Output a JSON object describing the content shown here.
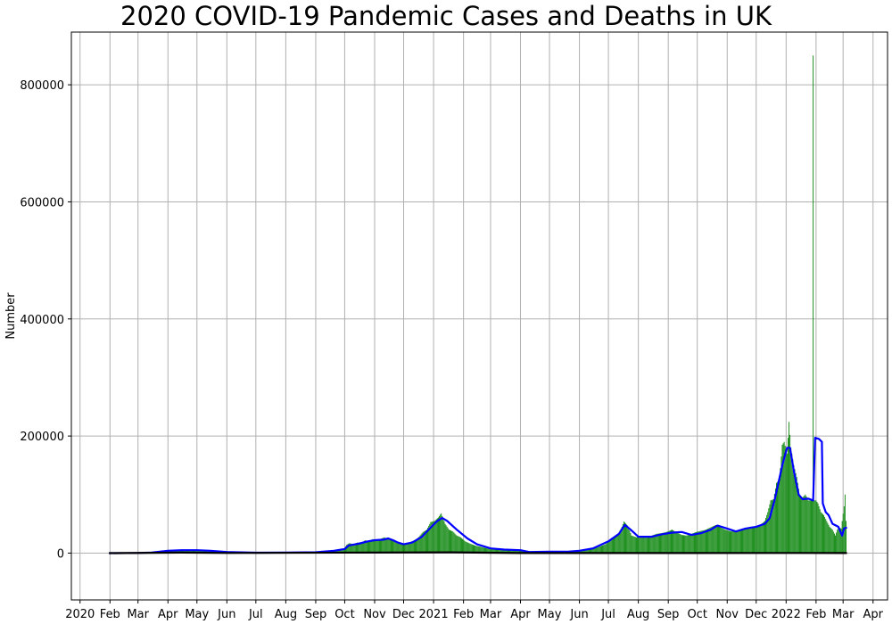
{
  "chart_data": {
    "type": "bar",
    "title": "2020 COVID-19 Pandemic Cases and Deaths in UK",
    "xlabel": "",
    "ylabel": "Number",
    "grid": true,
    "x_range": [
      "2019-12-23",
      "2022-04-16"
    ],
    "ylim": [
      -80000,
      890000
    ],
    "y_ticks": [
      0,
      200000,
      400000,
      600000,
      800000
    ],
    "y_tick_labels": [
      "0",
      "200000",
      "400000",
      "600000",
      "800000"
    ],
    "x_ticks": [
      {
        "date": "2020-01-01",
        "label": "2020"
      },
      {
        "date": "2020-02-01",
        "label": "Feb"
      },
      {
        "date": "2020-03-01",
        "label": "Mar"
      },
      {
        "date": "2020-04-01",
        "label": "Apr"
      },
      {
        "date": "2020-05-01",
        "label": "May"
      },
      {
        "date": "2020-06-01",
        "label": "Jun"
      },
      {
        "date": "2020-07-01",
        "label": "Jul"
      },
      {
        "date": "2020-08-01",
        "label": "Aug"
      },
      {
        "date": "2020-09-01",
        "label": "Sep"
      },
      {
        "date": "2020-10-01",
        "label": "Oct"
      },
      {
        "date": "2020-11-01",
        "label": "Nov"
      },
      {
        "date": "2020-12-01",
        "label": "Dec"
      },
      {
        "date": "2021-01-01",
        "label": "2021"
      },
      {
        "date": "2021-02-01",
        "label": "Feb"
      },
      {
        "date": "2021-03-01",
        "label": "Mar"
      },
      {
        "date": "2021-04-01",
        "label": "Apr"
      },
      {
        "date": "2021-05-01",
        "label": "May"
      },
      {
        "date": "2021-06-01",
        "label": "Jun"
      },
      {
        "date": "2021-07-01",
        "label": "Jul"
      },
      {
        "date": "2021-08-01",
        "label": "Aug"
      },
      {
        "date": "2021-09-01",
        "label": "Sep"
      },
      {
        "date": "2021-10-01",
        "label": "Oct"
      },
      {
        "date": "2021-11-01",
        "label": "Nov"
      },
      {
        "date": "2021-12-01",
        "label": "Dec"
      },
      {
        "date": "2022-01-01",
        "label": "2022"
      },
      {
        "date": "2022-02-01",
        "label": "Feb"
      },
      {
        "date": "2022-03-01",
        "label": "Mar"
      },
      {
        "date": "2022-04-01",
        "label": "Apr"
      }
    ],
    "colors": {
      "cases": "#008000",
      "rolling_average": "#0000ff",
      "deaths": "#000000",
      "grid": "#b0b0b0"
    },
    "series": [
      {
        "type": "bar",
        "points": [
          [
            "2020-01-31",
            0
          ],
          [
            "2020-02-15",
            20
          ],
          [
            "2020-03-01",
            50
          ],
          [
            "2020-03-15",
            600
          ],
          [
            "2020-03-25",
            2500
          ],
          [
            "2020-04-05",
            5000
          ],
          [
            "2020-04-15",
            5200
          ],
          [
            "2020-04-25",
            5000
          ],
          [
            "2020-05-05",
            4500
          ],
          [
            "2020-05-20",
            2800
          ],
          [
            "2020-06-05",
            1500
          ],
          [
            "2020-06-20",
            1100
          ],
          [
            "2020-07-05",
            700
          ],
          [
            "2020-07-20",
            650
          ],
          [
            "2020-08-05",
            850
          ],
          [
            "2020-08-20",
            1100
          ],
          [
            "2020-09-01",
            1600
          ],
          [
            "2020-09-10",
            2800
          ],
          [
            "2020-09-20",
            4500
          ],
          [
            "2020-09-30",
            7000
          ],
          [
            "2020-10-03",
            14000
          ],
          [
            "2020-10-06",
            17000
          ],
          [
            "2020-10-10",
            15000
          ],
          [
            "2020-10-14",
            18000
          ],
          [
            "2020-10-18",
            17000
          ],
          [
            "2020-10-22",
            22000
          ],
          [
            "2020-10-26",
            20000
          ],
          [
            "2020-10-30",
            24000
          ],
          [
            "2020-11-03",
            22000
          ],
          [
            "2020-11-07",
            24000
          ],
          [
            "2020-11-11",
            27000
          ],
          [
            "2020-11-15",
            24000
          ],
          [
            "2020-11-19",
            22000
          ],
          [
            "2020-11-23",
            20000
          ],
          [
            "2020-11-27",
            17000
          ],
          [
            "2020-12-01",
            14000
          ],
          [
            "2020-12-05",
            15500
          ],
          [
            "2020-12-09",
            20000
          ],
          [
            "2020-12-13",
            22000
          ],
          [
            "2020-12-17",
            28000
          ],
          [
            "2020-12-21",
            36000
          ],
          [
            "2020-12-25",
            40000
          ],
          [
            "2020-12-29",
            53000
          ],
          [
            "2021-01-02",
            55000
          ],
          [
            "2021-01-06",
            61000
          ],
          [
            "2021-01-09",
            68000
          ],
          [
            "2021-01-13",
            50000
          ],
          [
            "2021-01-17",
            40000
          ],
          [
            "2021-01-21",
            37000
          ],
          [
            "2021-01-25",
            30000
          ],
          [
            "2021-01-29",
            27000
          ],
          [
            "2021-02-03",
            20000
          ],
          [
            "2021-02-08",
            16000
          ],
          [
            "2021-02-13",
            13000
          ],
          [
            "2021-02-18",
            11000
          ],
          [
            "2021-02-23",
            9000
          ],
          [
            "2021-03-01",
            7000
          ],
          [
            "2021-03-08",
            6000
          ],
          [
            "2021-03-15",
            5500
          ],
          [
            "2021-03-25",
            5000
          ],
          [
            "2021-04-05",
            3000
          ],
          [
            "2021-04-15",
            2800
          ],
          [
            "2021-05-01",
            2200
          ],
          [
            "2021-05-15",
            2300
          ],
          [
            "2021-05-25",
            3000
          ],
          [
            "2021-06-01",
            4000
          ],
          [
            "2021-06-10",
            7000
          ],
          [
            "2021-06-20",
            10000
          ],
          [
            "2021-06-28",
            15000
          ],
          [
            "2021-07-05",
            24000
          ],
          [
            "2021-07-10",
            30000
          ],
          [
            "2021-07-15",
            45000
          ],
          [
            "2021-07-17",
            54000
          ],
          [
            "2021-07-21",
            47000
          ],
          [
            "2021-07-25",
            30000
          ],
          [
            "2021-07-30",
            27000
          ],
          [
            "2021-08-05",
            29000
          ],
          [
            "2021-08-10",
            26000
          ],
          [
            "2021-08-15",
            30000
          ],
          [
            "2021-08-20",
            33000
          ],
          [
            "2021-08-25",
            34000
          ],
          [
            "2021-08-30",
            36000
          ],
          [
            "2021-09-05",
            40000
          ],
          [
            "2021-09-10",
            35000
          ],
          [
            "2021-09-15",
            31000
          ],
          [
            "2021-09-20",
            30000
          ],
          [
            "2021-09-25",
            33000
          ],
          [
            "2021-09-30",
            36000
          ],
          [
            "2021-10-05",
            38000
          ],
          [
            "2021-10-10",
            40000
          ],
          [
            "2021-10-15",
            44000
          ],
          [
            "2021-10-20",
            48000
          ],
          [
            "2021-10-25",
            44000
          ],
          [
            "2021-10-30",
            40000
          ],
          [
            "2021-11-05",
            37000
          ],
          [
            "2021-11-10",
            38000
          ],
          [
            "2021-11-15",
            40000
          ],
          [
            "2021-11-20",
            42000
          ],
          [
            "2021-11-25",
            45000
          ],
          [
            "2021-12-01",
            46000
          ],
          [
            "2021-12-05",
            48000
          ],
          [
            "2021-12-10",
            55000
          ],
          [
            "2021-12-13",
            70000
          ],
          [
            "2021-12-16",
            90000
          ],
          [
            "2021-12-19",
            92000
          ],
          [
            "2021-12-22",
            120000
          ],
          [
            "2021-12-25",
            125000
          ],
          [
            "2021-12-28",
            185000
          ],
          [
            "2021-12-30",
            190000
          ],
          [
            "2022-01-02",
            170000
          ],
          [
            "2022-01-04",
            224000
          ],
          [
            "2022-01-06",
            180000
          ],
          [
            "2022-01-09",
            150000
          ],
          [
            "2022-01-12",
            130000
          ],
          [
            "2022-01-15",
            100000
          ],
          [
            "2022-01-18",
            95000
          ],
          [
            "2022-01-21",
            100000
          ],
          [
            "2022-01-24",
            90000
          ],
          [
            "2022-01-27",
            90000
          ],
          [
            "2022-01-29",
            850000
          ],
          [
            "2022-02-01",
            90000
          ],
          [
            "2022-02-03",
            85000
          ],
          [
            "2022-02-06",
            70000
          ],
          [
            "2022-02-09",
            65000
          ],
          [
            "2022-02-12",
            55000
          ],
          [
            "2022-02-15",
            45000
          ],
          [
            "2022-02-18",
            40000
          ],
          [
            "2022-02-21",
            30000
          ],
          [
            "2022-02-24",
            45000
          ],
          [
            "2022-02-27",
            42000
          ],
          [
            "2022-03-02",
            80000
          ],
          [
            "2022-03-03",
            100000
          ],
          [
            "2022-03-04",
            55000
          ]
        ]
      },
      {
        "type": "line",
        "points": [
          [
            "2020-01-31",
            0
          ],
          [
            "2020-03-01",
            200
          ],
          [
            "2020-03-15",
            1000
          ],
          [
            "2020-04-01",
            4000
          ],
          [
            "2020-04-15",
            5000
          ],
          [
            "2020-05-01",
            5000
          ],
          [
            "2020-05-15",
            4000
          ],
          [
            "2020-06-01",
            2000
          ],
          [
            "2020-07-01",
            700
          ],
          [
            "2020-08-01",
            800
          ],
          [
            "2020-09-01",
            1500
          ],
          [
            "2020-09-20",
            4000
          ],
          [
            "2020-10-01",
            7000
          ],
          [
            "2020-10-05",
            13000
          ],
          [
            "2020-10-15",
            16000
          ],
          [
            "2020-10-25",
            20000
          ],
          [
            "2020-11-01",
            22000
          ],
          [
            "2020-11-10",
            23000
          ],
          [
            "2020-11-15",
            25000
          ],
          [
            "2020-11-20",
            22000
          ],
          [
            "2020-11-25",
            18000
          ],
          [
            "2020-12-01",
            15000
          ],
          [
            "2020-12-10",
            18000
          ],
          [
            "2020-12-20",
            28000
          ],
          [
            "2020-12-28",
            42000
          ],
          [
            "2021-01-05",
            55000
          ],
          [
            "2021-01-10",
            60000
          ],
          [
            "2021-01-15",
            55000
          ],
          [
            "2021-01-25",
            40000
          ],
          [
            "2021-02-05",
            25000
          ],
          [
            "2021-02-15",
            15000
          ],
          [
            "2021-03-01",
            8000
          ],
          [
            "2021-03-15",
            6000
          ],
          [
            "2021-04-01",
            5000
          ],
          [
            "2021-04-10",
            2000
          ],
          [
            "2021-05-01",
            2500
          ],
          [
            "2021-05-20",
            2500
          ],
          [
            "2021-06-01",
            4000
          ],
          [
            "2021-06-15",
            8000
          ],
          [
            "2021-07-01",
            20000
          ],
          [
            "2021-07-12",
            33000
          ],
          [
            "2021-07-18",
            48000
          ],
          [
            "2021-07-24",
            40000
          ],
          [
            "2021-08-01",
            28000
          ],
          [
            "2021-08-15",
            28000
          ],
          [
            "2021-08-25",
            32000
          ],
          [
            "2021-09-05",
            35000
          ],
          [
            "2021-09-15",
            36000
          ],
          [
            "2021-09-25",
            31000
          ],
          [
            "2021-10-05",
            34000
          ],
          [
            "2021-10-15",
            40000
          ],
          [
            "2021-10-22",
            47000
          ],
          [
            "2021-11-01",
            42000
          ],
          [
            "2021-11-10",
            37000
          ],
          [
            "2021-11-20",
            42000
          ],
          [
            "2021-12-01",
            45000
          ],
          [
            "2021-12-10",
            50000
          ],
          [
            "2021-12-15",
            60000
          ],
          [
            "2021-12-20",
            90000
          ],
          [
            "2021-12-28",
            150000
          ],
          [
            "2022-01-02",
            180000
          ],
          [
            "2022-01-05",
            180000
          ],
          [
            "2022-01-09",
            140000
          ],
          [
            "2022-01-14",
            100000
          ],
          [
            "2022-01-18",
            92000
          ],
          [
            "2022-01-24",
            93000
          ],
          [
            "2022-01-29",
            90000
          ],
          [
            "2022-01-31",
            197000
          ],
          [
            "2022-02-04",
            195000
          ],
          [
            "2022-02-07",
            190000
          ],
          [
            "2022-02-08",
            85000
          ],
          [
            "2022-02-11",
            70000
          ],
          [
            "2022-02-14",
            65000
          ],
          [
            "2022-02-18",
            50000
          ],
          [
            "2022-02-24",
            45000
          ],
          [
            "2022-02-28",
            30000
          ],
          [
            "2022-03-02",
            42000
          ],
          [
            "2022-03-05",
            44000
          ]
        ]
      },
      {
        "type": "line",
        "points": [
          [
            "2020-01-31",
            0
          ],
          [
            "2020-04-15",
            900
          ],
          [
            "2020-06-01",
            200
          ],
          [
            "2021-01-20",
            1300
          ],
          [
            "2021-04-01",
            50
          ],
          [
            "2022-01-15",
            300
          ],
          [
            "2022-03-05",
            150
          ]
        ]
      }
    ]
  }
}
